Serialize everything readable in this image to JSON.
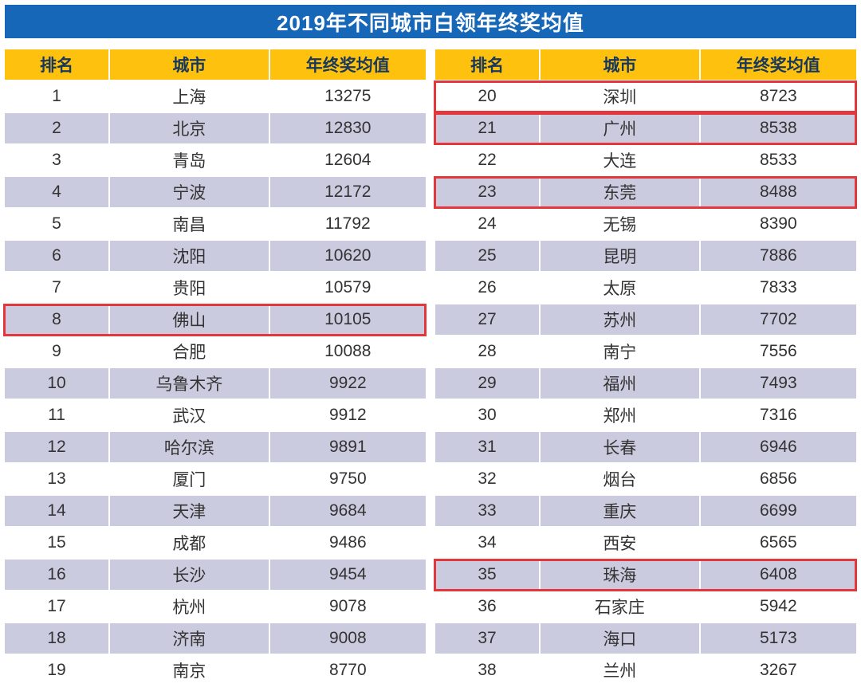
{
  "page": {
    "title": "2019年不同城市白领年终奖均值"
  },
  "colors": {
    "title_bg": "#1667B8",
    "title_text": "#FFFFFF",
    "header_bg": "#FEC20E",
    "header_text": "#17375D",
    "row_bg": "#FFFFFF",
    "row_alt_bg": "#CBCBDF",
    "body_text": "#333333",
    "highlight_border": "#E4373B"
  },
  "chart_data": {
    "type": "table",
    "title": "2019年不同城市白领年终奖均值",
    "columns": [
      "排名",
      "城市",
      "年终奖均值"
    ],
    "layout": "two side-by-side tables, ranks 1-19 left, ranks 20-38 right, alternating white/lavender rows",
    "rows": [
      [
        1,
        "上海",
        13275
      ],
      [
        2,
        "北京",
        12830
      ],
      [
        3,
        "青岛",
        12604
      ],
      [
        4,
        "宁波",
        12172
      ],
      [
        5,
        "南昌",
        11792
      ],
      [
        6,
        "沈阳",
        10620
      ],
      [
        7,
        "贵阳",
        10579
      ],
      [
        8,
        "佛山",
        10105
      ],
      [
        9,
        "合肥",
        10088
      ],
      [
        10,
        "乌鲁木齐",
        9922
      ],
      [
        11,
        "武汉",
        9912
      ],
      [
        12,
        "哈尔滨",
        9891
      ],
      [
        13,
        "厦门",
        9750
      ],
      [
        14,
        "天津",
        9684
      ],
      [
        15,
        "成都",
        9486
      ],
      [
        16,
        "长沙",
        9454
      ],
      [
        17,
        "杭州",
        9078
      ],
      [
        18,
        "济南",
        9008
      ],
      [
        19,
        "南京",
        8770
      ],
      [
        20,
        "深圳",
        8723
      ],
      [
        21,
        "广州",
        8538
      ],
      [
        22,
        "大连",
        8533
      ],
      [
        23,
        "东莞",
        8488
      ],
      [
        24,
        "无锡",
        8390
      ],
      [
        25,
        "昆明",
        7886
      ],
      [
        26,
        "太原",
        7833
      ],
      [
        27,
        "苏州",
        7702
      ],
      [
        28,
        "南宁",
        7556
      ],
      [
        29,
        "福州",
        7493
      ],
      [
        30,
        "郑州",
        7316
      ],
      [
        31,
        "长春",
        6946
      ],
      [
        32,
        "烟台",
        6856
      ],
      [
        33,
        "重庆",
        6699
      ],
      [
        34,
        "西安",
        6565
      ],
      [
        35,
        "珠海",
        6408
      ],
      [
        36,
        "石家庄",
        5942
      ],
      [
        37,
        "海口",
        5173
      ],
      [
        38,
        "兰州",
        3267
      ]
    ],
    "highlighted_ranks": [
      8,
      20,
      21,
      23,
      35
    ],
    "rows_per_table": 19
  }
}
